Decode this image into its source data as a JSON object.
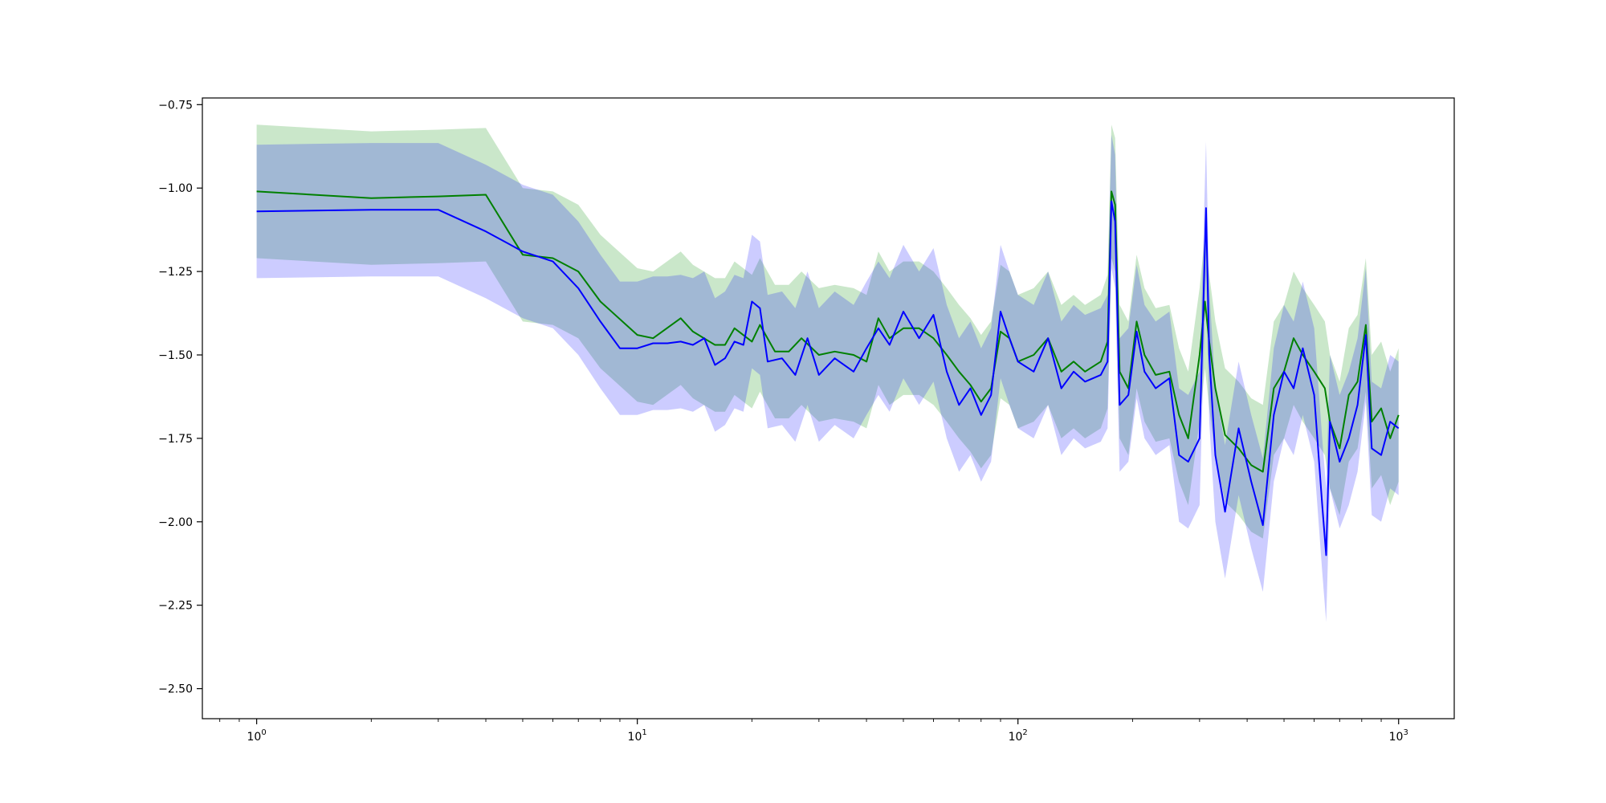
{
  "chart_data": {
    "type": "line",
    "title": "",
    "xlabel": "",
    "ylabel": "",
    "xscale": "log",
    "xlim": [
      0.72,
      1400
    ],
    "ylim": [
      -2.59,
      -0.73
    ],
    "grid": false,
    "legend": "none",
    "xticks": [
      {
        "value": 1,
        "base": "10",
        "exp": "0"
      },
      {
        "value": 10,
        "base": "10",
        "exp": "1"
      },
      {
        "value": 100,
        "base": "10",
        "exp": "2"
      },
      {
        "value": 1000,
        "base": "10",
        "exp": "3"
      }
    ],
    "yticks": [
      {
        "value": -0.75,
        "label": "−0.75"
      },
      {
        "value": -1.0,
        "label": "−1.00"
      },
      {
        "value": -1.25,
        "label": "−1.25"
      },
      {
        "value": -1.5,
        "label": "−1.50"
      },
      {
        "value": -1.75,
        "label": "−1.75"
      },
      {
        "value": -2.0,
        "label": "−2.00"
      },
      {
        "value": -2.25,
        "label": "−2.25"
      },
      {
        "value": -2.5,
        "label": "−2.50"
      }
    ],
    "series": [
      {
        "color": "#008000",
        "band_color": "#2ca02c",
        "band_opacity": 0.25,
        "band_offset": 0.2,
        "points": [
          [
            1,
            -1.01
          ],
          [
            2,
            -1.03
          ],
          [
            3,
            -1.025
          ],
          [
            4,
            -1.02
          ],
          [
            5,
            -1.2
          ],
          [
            6,
            -1.21
          ],
          [
            7,
            -1.25
          ],
          [
            8,
            -1.34
          ],
          [
            10,
            -1.44
          ],
          [
            11,
            -1.45
          ],
          [
            13,
            -1.39
          ],
          [
            14,
            -1.43
          ],
          [
            16,
            -1.47
          ],
          [
            17,
            -1.47
          ],
          [
            18,
            -1.42
          ],
          [
            20,
            -1.46
          ],
          [
            21,
            -1.41
          ],
          [
            23,
            -1.49
          ],
          [
            25,
            -1.49
          ],
          [
            27,
            -1.45
          ],
          [
            30,
            -1.5
          ],
          [
            33,
            -1.49
          ],
          [
            37,
            -1.5
          ],
          [
            40,
            -1.52
          ],
          [
            43,
            -1.39
          ],
          [
            46,
            -1.45
          ],
          [
            50,
            -1.42
          ],
          [
            55,
            -1.42
          ],
          [
            60,
            -1.45
          ],
          [
            65,
            -1.5
          ],
          [
            70,
            -1.55
          ],
          [
            75,
            -1.59
          ],
          [
            80,
            -1.64
          ],
          [
            85,
            -1.6
          ],
          [
            90,
            -1.43
          ],
          [
            95,
            -1.45
          ],
          [
            100,
            -1.52
          ],
          [
            110,
            -1.5
          ],
          [
            120,
            -1.45
          ],
          [
            130,
            -1.55
          ],
          [
            140,
            -1.52
          ],
          [
            150,
            -1.55
          ],
          [
            165,
            -1.52
          ],
          [
            172,
            -1.46
          ],
          [
            176,
            -1.01
          ],
          [
            180,
            -1.05
          ],
          [
            185,
            -1.55
          ],
          [
            195,
            -1.6
          ],
          [
            205,
            -1.4
          ],
          [
            215,
            -1.5
          ],
          [
            230,
            -1.56
          ],
          [
            250,
            -1.55
          ],
          [
            265,
            -1.68
          ],
          [
            280,
            -1.75
          ],
          [
            300,
            -1.5
          ],
          [
            310,
            -1.34
          ],
          [
            318,
            -1.46
          ],
          [
            330,
            -1.6
          ],
          [
            350,
            -1.74
          ],
          [
            380,
            -1.78
          ],
          [
            410,
            -1.83
          ],
          [
            440,
            -1.85
          ],
          [
            470,
            -1.6
          ],
          [
            500,
            -1.55
          ],
          [
            530,
            -1.45
          ],
          [
            560,
            -1.5
          ],
          [
            600,
            -1.55
          ],
          [
            640,
            -1.6
          ],
          [
            660,
            -1.7
          ],
          [
            700,
            -1.78
          ],
          [
            740,
            -1.62
          ],
          [
            780,
            -1.58
          ],
          [
            820,
            -1.41
          ],
          [
            850,
            -1.7
          ],
          [
            900,
            -1.66
          ],
          [
            950,
            -1.75
          ],
          [
            1000,
            -1.68
          ]
        ]
      },
      {
        "color": "#0000ff",
        "band_color": "#0000ff",
        "band_opacity": 0.2,
        "band_offset": 0.2,
        "points": [
          [
            1,
            -1.07
          ],
          [
            2,
            -1.065
          ],
          [
            3,
            -1.065
          ],
          [
            4,
            -1.13
          ],
          [
            5,
            -1.19
          ],
          [
            6,
            -1.22
          ],
          [
            7,
            -1.3
          ],
          [
            8,
            -1.4
          ],
          [
            9,
            -1.48
          ],
          [
            10,
            -1.48
          ],
          [
            11,
            -1.465
          ],
          [
            12,
            -1.465
          ],
          [
            13,
            -1.46
          ],
          [
            14,
            -1.47
          ],
          [
            15,
            -1.45
          ],
          [
            16,
            -1.53
          ],
          [
            17,
            -1.51
          ],
          [
            18,
            -1.46
          ],
          [
            19,
            -1.47
          ],
          [
            20,
            -1.34
          ],
          [
            21,
            -1.36
          ],
          [
            22,
            -1.52
          ],
          [
            24,
            -1.51
          ],
          [
            26,
            -1.56
          ],
          [
            28,
            -1.45
          ],
          [
            30,
            -1.56
          ],
          [
            33,
            -1.51
          ],
          [
            37,
            -1.55
          ],
          [
            40,
            -1.48
          ],
          [
            43,
            -1.42
          ],
          [
            46,
            -1.47
          ],
          [
            50,
            -1.37
          ],
          [
            55,
            -1.45
          ],
          [
            60,
            -1.38
          ],
          [
            65,
            -1.55
          ],
          [
            70,
            -1.65
          ],
          [
            75,
            -1.6
          ],
          [
            80,
            -1.68
          ],
          [
            85,
            -1.62
          ],
          [
            90,
            -1.37
          ],
          [
            95,
            -1.45
          ],
          [
            100,
            -1.52
          ],
          [
            110,
            -1.55
          ],
          [
            120,
            -1.45
          ],
          [
            130,
            -1.6
          ],
          [
            140,
            -1.55
          ],
          [
            150,
            -1.58
          ],
          [
            165,
            -1.56
          ],
          [
            172,
            -1.52
          ],
          [
            176,
            -1.04
          ],
          [
            180,
            -1.1
          ],
          [
            185,
            -1.65
          ],
          [
            195,
            -1.62
          ],
          [
            205,
            -1.43
          ],
          [
            215,
            -1.55
          ],
          [
            230,
            -1.6
          ],
          [
            250,
            -1.57
          ],
          [
            265,
            -1.8
          ],
          [
            280,
            -1.82
          ],
          [
            300,
            -1.75
          ],
          [
            312,
            -1.06
          ],
          [
            318,
            -1.5
          ],
          [
            330,
            -1.8
          ],
          [
            350,
            -1.97
          ],
          [
            380,
            -1.72
          ],
          [
            410,
            -1.88
          ],
          [
            440,
            -2.01
          ],
          [
            470,
            -1.68
          ],
          [
            500,
            -1.55
          ],
          [
            530,
            -1.6
          ],
          [
            560,
            -1.48
          ],
          [
            600,
            -1.62
          ],
          [
            630,
            -1.95
          ],
          [
            645,
            -2.1
          ],
          [
            660,
            -1.7
          ],
          [
            700,
            -1.82
          ],
          [
            740,
            -1.75
          ],
          [
            780,
            -1.65
          ],
          [
            820,
            -1.44
          ],
          [
            850,
            -1.78
          ],
          [
            900,
            -1.8
          ],
          [
            950,
            -1.7
          ],
          [
            1000,
            -1.72
          ]
        ]
      }
    ]
  }
}
